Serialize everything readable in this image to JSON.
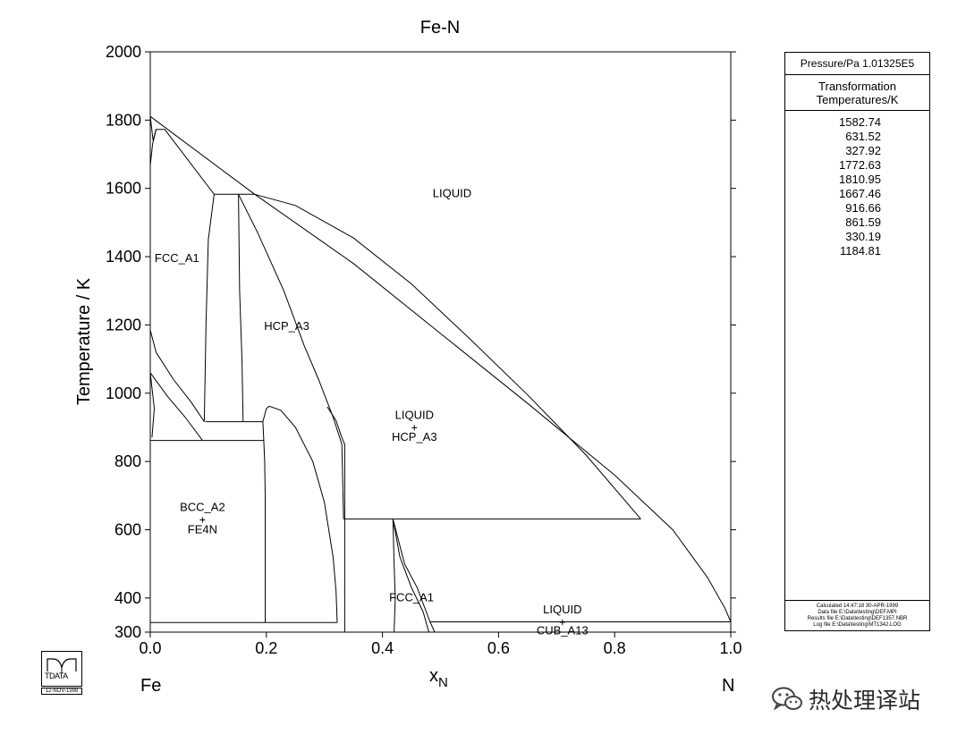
{
  "chart_data": {
    "type": "line",
    "title": "Fe-N",
    "xlabel": "x",
    "xlabel_sub": "N",
    "ylabel": "Temperature / K",
    "xlim": [
      0,
      1
    ],
    "ylim": [
      300,
      2000
    ],
    "x_ticks": [
      "0.0",
      "0.2",
      "0.4",
      "0.6",
      "0.8",
      "1.0"
    ],
    "y_ticks": [
      "300",
      "400",
      "600",
      "800",
      "1000",
      "1200",
      "1400",
      "1600",
      "1800",
      "2000"
    ],
    "x_left_label": "Fe",
    "x_right_label": "N",
    "grid": false,
    "region_labels": [
      {
        "text": "LIQUID",
        "x": 0.52,
        "y": 1575
      },
      {
        "text": "FCC_A1",
        "x": 0.046,
        "y": 1385
      },
      {
        "text": "HCP_A3",
        "x": 0.235,
        "y": 1185
      },
      {
        "text": "LIQUID",
        "x": 0.455,
        "y": 925,
        "cross": true
      },
      {
        "text": "HCP_A3",
        "x": 0.455,
        "y": 860
      },
      {
        "text": "BCC_A2",
        "x": 0.09,
        "y": 655,
        "cross": true
      },
      {
        "text": "FE4N",
        "x": 0.09,
        "y": 590
      },
      {
        "text": "FCC_A1",
        "x": 0.45,
        "y": 390
      },
      {
        "text": "LIQUID",
        "x": 0.71,
        "y": 355,
        "cross": true
      },
      {
        "text": "CUB_A13",
        "x": 0.71,
        "y": 293
      }
    ],
    "series": [
      {
        "points": [
          [
            0.0,
            1810.95
          ],
          [
            0.005,
            1740
          ],
          [
            0.01,
            1772.63
          ],
          [
            0.025,
            1772.63
          ],
          [
            0.11,
            1582.74
          ],
          [
            0.18,
            1582.74
          ]
        ]
      },
      {
        "points": [
          [
            0.0,
            1810.95
          ],
          [
            0.18,
            1582.74
          ]
        ]
      },
      {
        "points": [
          [
            0.0,
            1667.46
          ],
          [
            0.004,
            1730
          ],
          [
            0.01,
            1772.63
          ]
        ]
      },
      {
        "points": [
          [
            0.0,
            1667.46
          ],
          [
            0.0,
            1184.81
          ]
        ]
      },
      {
        "points": [
          [
            0.0,
            1184.81
          ],
          [
            0.01,
            1120
          ],
          [
            0.04,
            1040
          ],
          [
            0.07,
            975
          ],
          [
            0.093,
            916.66
          ]
        ]
      },
      {
        "points": [
          [
            0.0,
            1184.81
          ],
          [
            0.0,
            861.59
          ]
        ]
      },
      {
        "points": [
          [
            0.0,
            1060
          ],
          [
            0.007,
            955
          ],
          [
            0.003,
            870
          ]
        ]
      },
      {
        "points": [
          [
            0.0,
            1060
          ],
          [
            0.03,
            990
          ],
          [
            0.06,
            930
          ],
          [
            0.09,
            861.59
          ]
        ]
      },
      {
        "points": [
          [
            0.095,
            916.66
          ],
          [
            0.194,
            916.66
          ]
        ]
      },
      {
        "points": [
          [
            0.0,
            861.59
          ],
          [
            0.195,
            861.59
          ]
        ]
      },
      {
        "points": [
          [
            0.11,
            1582.74
          ],
          [
            0.1,
            1450
          ],
          [
            0.096,
            1200
          ],
          [
            0.093,
            916.66
          ]
        ]
      },
      {
        "points": [
          [
            0.152,
            1582.74
          ],
          [
            0.154,
            1300
          ],
          [
            0.158,
            1100
          ],
          [
            0.16,
            916.66
          ]
        ]
      },
      {
        "points": [
          [
            0.152,
            1582.74
          ],
          [
            0.185,
            1470
          ],
          [
            0.23,
            1300
          ],
          [
            0.265,
            1140
          ],
          [
            0.29,
            1040
          ],
          [
            0.315,
            930
          ],
          [
            0.33,
            850
          ],
          [
            0.333,
            631.52
          ]
        ]
      },
      {
        "points": [
          [
            0.18,
            1582.74
          ],
          [
            0.25,
            1550
          ],
          [
            0.35,
            1455
          ],
          [
            0.45,
            1320
          ],
          [
            0.55,
            1160
          ],
          [
            0.65,
            995
          ],
          [
            0.75,
            820
          ],
          [
            0.845,
            631.52
          ]
        ]
      },
      {
        "points": [
          [
            0.18,
            1582.74
          ],
          [
            0.35,
            1380
          ],
          [
            0.5,
            1175
          ],
          [
            0.65,
            970
          ],
          [
            0.8,
            760
          ],
          [
            0.9,
            600
          ],
          [
            0.96,
            460
          ],
          [
            0.99,
            370
          ],
          [
            1.0,
            330.19
          ]
        ]
      },
      {
        "points": [
          [
            0.194,
            916.66
          ],
          [
            0.2,
            955
          ],
          [
            0.205,
            962
          ],
          [
            0.225,
            950
          ],
          [
            0.25,
            900
          ],
          [
            0.28,
            800
          ],
          [
            0.3,
            680
          ],
          [
            0.315,
            520
          ],
          [
            0.32,
            420
          ],
          [
            0.322,
            327.92
          ]
        ]
      },
      {
        "points": [
          [
            0.194,
            916.66
          ],
          [
            0.195,
            880
          ],
          [
            0.197,
            800
          ],
          [
            0.198,
            700
          ],
          [
            0.198,
            500
          ],
          [
            0.198,
            327.92
          ]
        ]
      },
      {
        "points": [
          [
            0.305,
            960
          ],
          [
            0.32,
            920
          ],
          [
            0.33,
            870
          ],
          [
            0.335,
            850
          ],
          [
            0.335,
            300
          ]
        ]
      },
      {
        "points": [
          [
            0.0,
            327.92
          ],
          [
            0.322,
            327.92
          ]
        ]
      },
      {
        "points": [
          [
            0.333,
            631.52
          ],
          [
            0.845,
            631.52
          ]
        ]
      },
      {
        "points": [
          [
            0.418,
            631.52
          ],
          [
            0.43,
            520
          ],
          [
            0.45,
            430
          ],
          [
            0.47,
            360
          ],
          [
            0.48,
            300
          ]
        ]
      },
      {
        "points": [
          [
            0.418,
            631.52
          ],
          [
            0.42,
            500
          ],
          [
            0.422,
            400
          ],
          [
            0.42,
            300
          ]
        ]
      },
      {
        "points": [
          [
            0.418,
            631.52
          ],
          [
            0.438,
            500
          ],
          [
            0.46,
            430
          ],
          [
            0.482,
            330.19
          ]
        ]
      },
      {
        "points": [
          [
            0.482,
            330.19
          ],
          [
            1.0,
            330.19
          ]
        ]
      },
      {
        "points": [
          [
            0.482,
            330.19
          ],
          [
            0.49,
            300
          ]
        ]
      }
    ]
  },
  "info_panel": {
    "pressure": "Pressure/Pa  1.01325E5",
    "header_line1": "Transformation",
    "header_line2": "Temperatures/K",
    "temperatures": [
      "1582.74",
      "631.52",
      "327.92",
      "1772.63",
      "1810.95",
      "1667.46",
      "916.66",
      "861.59",
      "330.19",
      "1184.81"
    ],
    "calc_lines": [
      "Calculated  14:47:18  30-APR-1999",
      "Data file  E:\\Data\\testing\\DEF.MPI",
      "Results file  E:\\Data\\testing\\DEF1357.NBR",
      "Log file  E:\\Data\\testing\\MT1342.LOG"
    ]
  },
  "logo": {
    "text": "TDATA",
    "date": "12-NOV-1998"
  },
  "watermark": {
    "text": "热处理译站"
  }
}
